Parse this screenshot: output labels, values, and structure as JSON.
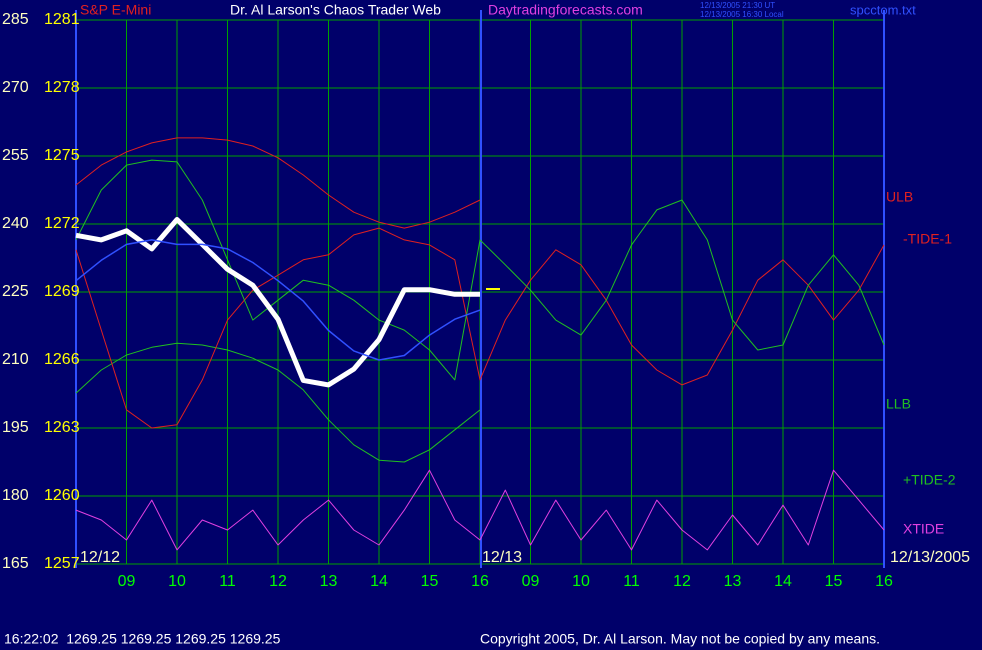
{
  "instrument": "S&P E-Mini",
  "website": "Daytradingforecasts.com",
  "timestamps": [
    "12/13/2005 21:30 UT",
    "12/13/2005 16:30 Local"
  ],
  "file": "spcctom.txt",
  "footer": {
    "status": "16:22:02  1269.25 1269.25 1269.25 1269.25",
    "copyright": "Copyright 2005, Dr. Al Larson. May not be copied by any means."
  },
  "chart_data": {
    "type": "line",
    "title": "Dr. Al Larson's Chaos Trader Web",
    "date_labels": [
      "12/12",
      "12/13",
      "12/13/2005"
    ],
    "x": [
      0,
      0.5,
      1,
      1.5,
      2,
      2.5,
      3,
      3.5,
      4,
      4.5,
      5,
      5.5,
      6,
      6.5,
      7,
      7.5,
      8,
      8.5,
      9,
      9.5,
      10,
      10.5,
      11,
      11.5,
      12,
      12.5,
      13,
      13.5,
      14,
      14.5,
      15,
      15.5,
      16
    ],
    "xlim": [
      0,
      16
    ],
    "xticks": [
      {
        "value": 1,
        "label": "09"
      },
      {
        "value": 2,
        "label": "10"
      },
      {
        "value": 3,
        "label": "11"
      },
      {
        "value": 4,
        "label": "12"
      },
      {
        "value": 5,
        "label": "13"
      },
      {
        "value": 6,
        "label": "14"
      },
      {
        "value": 7,
        "label": "15"
      },
      {
        "value": 8,
        "label": "16"
      },
      {
        "value": 9,
        "label": "09"
      },
      {
        "value": 10,
        "label": "10"
      },
      {
        "value": 11,
        "label": "11"
      },
      {
        "value": 12,
        "label": "12"
      },
      {
        "value": 13,
        "label": "13"
      },
      {
        "value": 14,
        "label": "14"
      },
      {
        "value": 15,
        "label": "15"
      },
      {
        "value": 16,
        "label": "16"
      }
    ],
    "ylim": [
      165,
      285
    ],
    "yticks": [
      165,
      180,
      195,
      210,
      225,
      240,
      255,
      270,
      285
    ],
    "y2lim": [
      1257,
      1281
    ],
    "y2ticks": [
      1257,
      1260,
      1263,
      1266,
      1269,
      1272,
      1275,
      1278,
      1281
    ],
    "grid": true,
    "series": [
      {
        "name": "ULB",
        "color": "#e02020",
        "values": [
          248.6,
          253,
          255.9,
          257.9,
          259,
          259,
          258.5,
          257.2,
          254.6,
          250.8,
          246.4,
          242.6,
          240.4,
          239.1,
          240.4,
          242.6,
          245.3,
          null,
          null,
          null,
          null,
          null,
          null,
          null,
          null,
          null,
          null,
          null,
          null,
          null,
          null,
          null,
          null
        ]
      },
      {
        "name": "LLB",
        "color": "#20c020",
        "values": [
          202.7,
          207.8,
          211.1,
          212.8,
          213.7,
          213.3,
          212.2,
          210.4,
          207.8,
          203.4,
          196.8,
          191.3,
          187.9,
          187.5,
          190.2,
          194.6,
          199,
          null,
          null,
          null,
          null,
          null,
          null,
          null,
          null,
          null,
          null,
          null,
          null,
          null,
          null,
          null,
          null
        ]
      },
      {
        "name": "-TIDE-1",
        "color": "#e02020",
        "values": [
          234.3,
          216.6,
          199,
          195,
          195.7,
          205.6,
          218.8,
          225.4,
          228.7,
          232.1,
          233.2,
          237.6,
          239.1,
          236.5,
          235.4,
          232.1,
          205.6,
          218.8,
          227.6,
          234.3,
          231,
          223.2,
          213.3,
          207.8,
          204.5,
          206.7,
          216.6,
          227.6,
          232.1,
          226.5,
          218.8,
          225.4,
          235.4
        ]
      },
      {
        "name": "+TIDE-2",
        "color": "#20c020",
        "values": [
          236.5,
          247.5,
          253,
          254.1,
          253.7,
          245.3,
          232.1,
          218.8,
          223.2,
          227.6,
          226.5,
          223.2,
          218.8,
          216.6,
          212.2,
          205.6,
          236.5,
          231,
          225.4,
          218.8,
          215.5,
          223.2,
          235.4,
          243.1,
          245.3,
          236.5,
          218.8,
          212.2,
          213.3,
          226.5,
          233.2,
          226.5,
          213.3
        ]
      },
      {
        "name": "XTIDE",
        "color": "#e040e0",
        "values": [
          176.9,
          174.7,
          170.3,
          179.1,
          168.1,
          174.7,
          172.5,
          176.9,
          169.2,
          174.7,
          179.1,
          172.5,
          169.2,
          176.9,
          185.7,
          174.7,
          170.3,
          181.3,
          169.2,
          179.1,
          170.3,
          176.9,
          168.1,
          179.1,
          172.5,
          168.1,
          175.8,
          169.2,
          178,
          169.2,
          185.7,
          179.1,
          172.5
        ]
      },
      {
        "color": "#ffffff",
        "axis": "y2",
        "values": [
          1271.5,
          1271.3,
          1271.7,
          1270.9,
          1272.2,
          1271.1,
          1270,
          1269.3,
          1267.8,
          1265.1,
          1264.9,
          1265.6,
          1266.9,
          1269.1,
          1269.1,
          1268.9,
          1268.9,
          null,
          null,
          null,
          null,
          null,
          null,
          null,
          null,
          null,
          null,
          null,
          null,
          null,
          null,
          null,
          null
        ]
      },
      {
        "color": "#3050ff",
        "axis": "y2",
        "values": [
          1269.5,
          1270.4,
          1271.1,
          1271.3,
          1271.1,
          1271.1,
          1270.9,
          1270.3,
          1269.5,
          1268.6,
          1267.3,
          1266.4,
          1266,
          1266.2,
          1267.1,
          1267.8,
          1268.2,
          null,
          null,
          null,
          null,
          null,
          null,
          null,
          null,
          null,
          null,
          null,
          null,
          null,
          null,
          null,
          null
        ]
      }
    ]
  }
}
